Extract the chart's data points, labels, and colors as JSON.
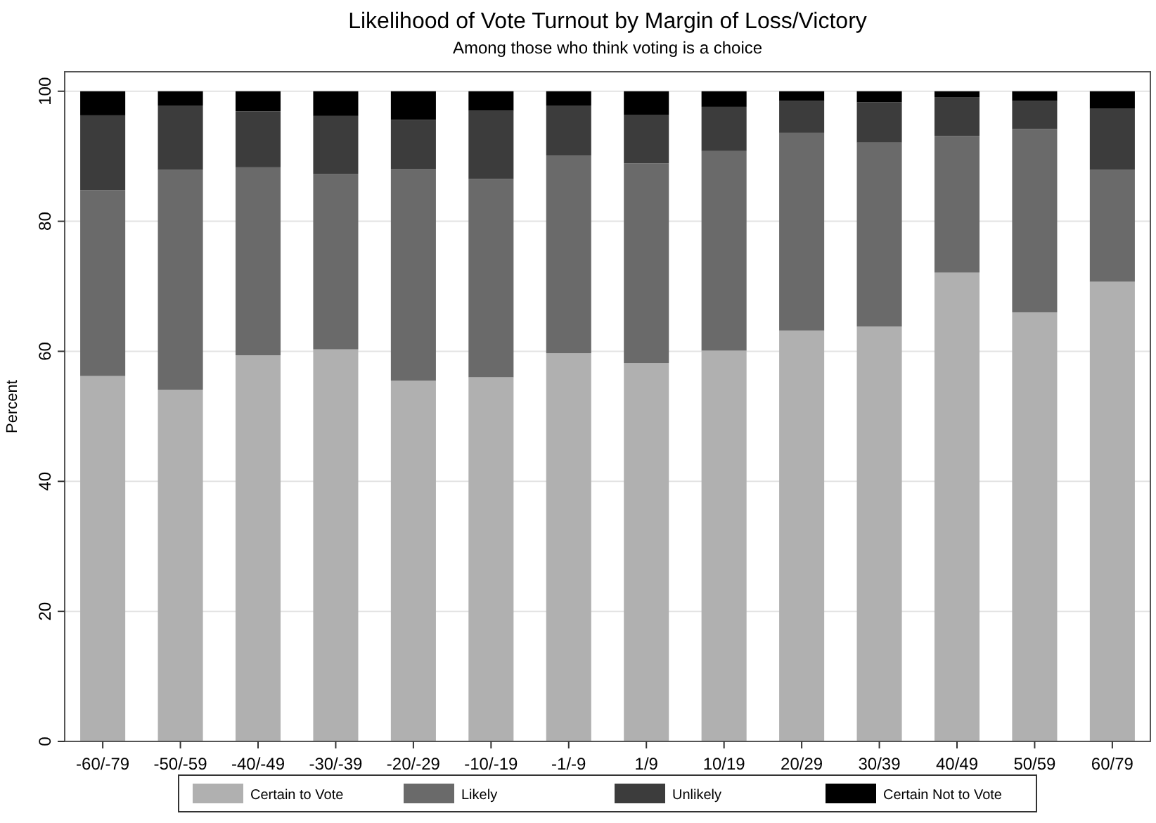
{
  "chart_data": {
    "type": "bar",
    "stacked": true,
    "title": "Likelihood of Vote Turnout by Margin of Loss/Victory",
    "subtitle": "Among those who think voting is a choice",
    "ylabel": "Percent",
    "categories": [
      "-60/-79",
      "-50/-59",
      "-40/-49",
      "-30/-39",
      "-20/-29",
      "-10/-19",
      "-1/-9",
      "1/9",
      "10/19",
      "20/29",
      "30/39",
      "40/49",
      "50/59",
      "60/79"
    ],
    "series": [
      {
        "name": "Certain to Vote",
        "color": "#b0b0b0",
        "values": [
          56.2,
          54.1,
          59.4,
          60.3,
          55.5,
          56.0,
          59.7,
          58.2,
          60.1,
          63.2,
          63.8,
          72.1,
          66.0,
          70.7
        ]
      },
      {
        "name": "Likely",
        "color": "#6a6a6a",
        "values": [
          28.6,
          33.8,
          28.9,
          27.0,
          32.5,
          30.5,
          30.4,
          30.7,
          30.7,
          30.4,
          28.3,
          21.0,
          28.2,
          17.2
        ]
      },
      {
        "name": "Unlikely",
        "color": "#3c3c3c",
        "values": [
          11.5,
          9.9,
          8.6,
          8.9,
          7.6,
          10.5,
          7.7,
          7.5,
          6.8,
          4.9,
          6.2,
          6.0,
          4.3,
          9.4
        ]
      },
      {
        "name": "Certain Not to Vote",
        "color": "#000000",
        "values": [
          3.7,
          2.2,
          3.1,
          3.8,
          4.4,
          3.0,
          2.2,
          3.6,
          2.4,
          1.5,
          1.7,
          0.9,
          1.5,
          2.7
        ]
      }
    ],
    "ylim": [
      0,
      103
    ],
    "yticks": [
      0,
      20,
      40,
      60,
      80,
      100
    ],
    "grid": "y",
    "legend": "bottom"
  }
}
